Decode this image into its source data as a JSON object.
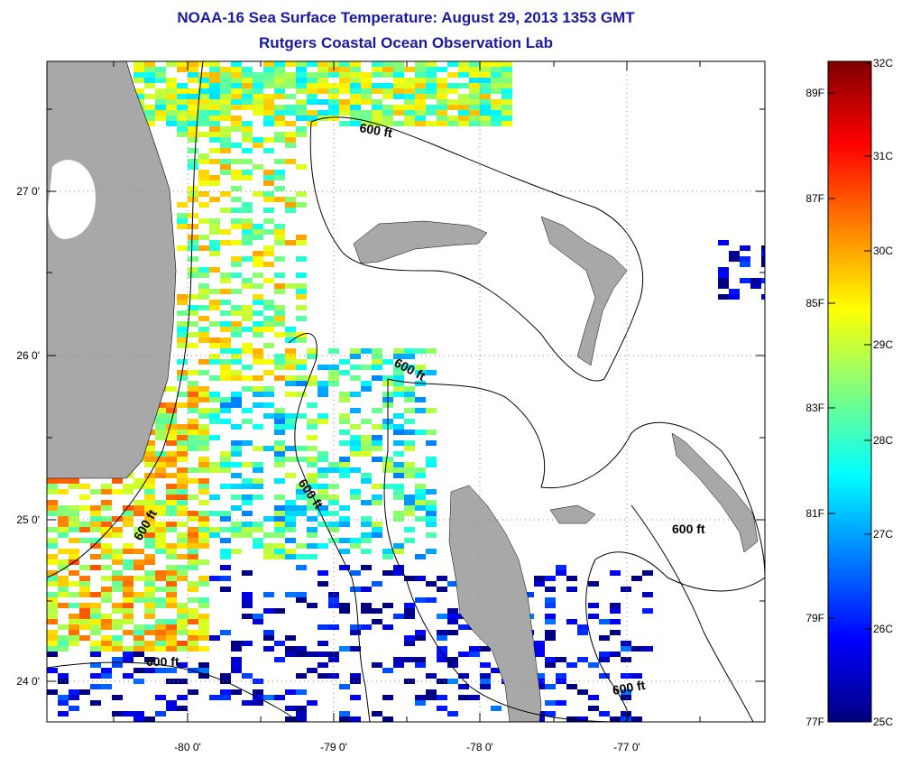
{
  "header": {
    "title": "NOAA-16 Sea Surface Temperature:  August 29, 2013 1353 GMT",
    "subtitle": "Rutgers Coastal Ocean Observation Lab"
  },
  "map": {
    "lat_labels": [
      "27 0'",
      "26 0'",
      "25 0'",
      "24 0'"
    ],
    "lon_labels": [
      "-80 0'",
      "-79 0'",
      "-78 0'",
      "-77 0'"
    ],
    "contour_labels": [
      "600 ft",
      "600 ft",
      "600 ft",
      "600 ft",
      "600 ft",
      "600 ft"
    ],
    "colors": {
      "land": "#a8a8a8",
      "no_data": "#ffffff",
      "contour": "#000000"
    }
  },
  "colorbar": {
    "celsius_labels": [
      "32C",
      "31C",
      "30C",
      "29C",
      "28C",
      "27C",
      "26C",
      "25C"
    ],
    "fahrenheit_labels": [
      "89F",
      "87F",
      "85F",
      "83F",
      "81F",
      "79F",
      "77F"
    ],
    "colormap": "jet"
  }
}
